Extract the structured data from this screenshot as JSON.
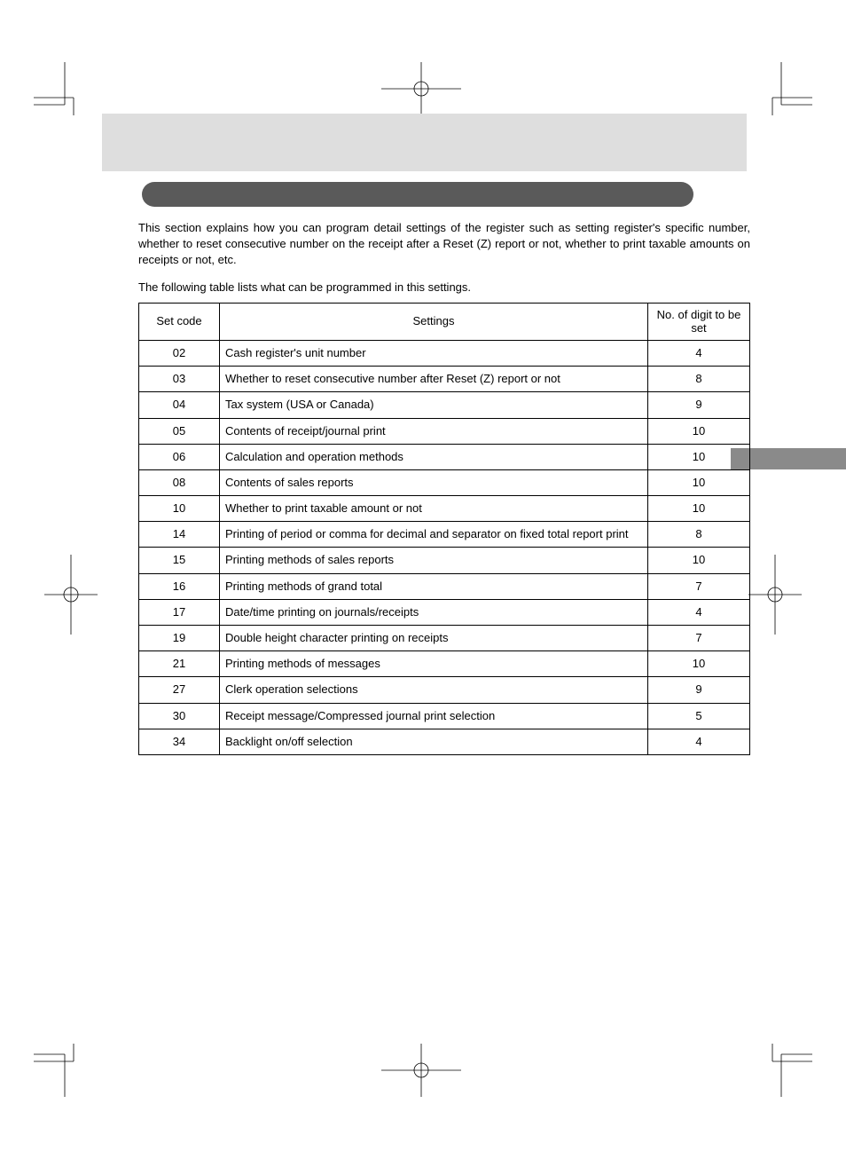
{
  "intro_text": "This section explains how you can program detail settings of the register such as setting register's specific number, whether to reset consecutive number on the receipt after a Reset (Z) report or not, whether to print taxable amounts on receipts or not, etc.",
  "table_intro": "The following table lists what can be programmed in this settings.",
  "columns": {
    "set_code": "Set code",
    "settings": "Settings",
    "digits": "No. of digit to be set"
  },
  "rows": [
    {
      "code": "02",
      "setting": "Cash register's unit number",
      "digits": "4"
    },
    {
      "code": "03",
      "setting": "Whether to reset consecutive number after Reset (Z) report or not",
      "digits": "8"
    },
    {
      "code": "04",
      "setting": "Tax system (USA or Canada)",
      "digits": "9"
    },
    {
      "code": "05",
      "setting": "Contents of receipt/journal print",
      "digits": "10"
    },
    {
      "code": "06",
      "setting": "Calculation and operation methods",
      "digits": "10"
    },
    {
      "code": "08",
      "setting": "Contents of sales reports",
      "digits": "10"
    },
    {
      "code": "10",
      "setting": "Whether to print taxable amount or not",
      "digits": "10"
    },
    {
      "code": "14",
      "setting": "Printing of period or comma for decimal and separator on fixed total report print",
      "digits": "8"
    },
    {
      "code": "15",
      "setting": "Printing methods of sales reports",
      "digits": "10"
    },
    {
      "code": "16",
      "setting": "Printing methods of grand total",
      "digits": "7"
    },
    {
      "code": "17",
      "setting": "Date/time printing on journals/receipts",
      "digits": "4"
    },
    {
      "code": "19",
      "setting": "Double height character printing on receipts",
      "digits": "7"
    },
    {
      "code": "21",
      "setting": "Printing methods of messages",
      "digits": "10"
    },
    {
      "code": "27",
      "setting": "Clerk operation selections",
      "digits": "9"
    },
    {
      "code": "30",
      "setting": "Receipt message/Compressed journal print selection",
      "digits": "5"
    },
    {
      "code": "34",
      "setting": "Backlight on/off selection",
      "digits": "4"
    }
  ]
}
